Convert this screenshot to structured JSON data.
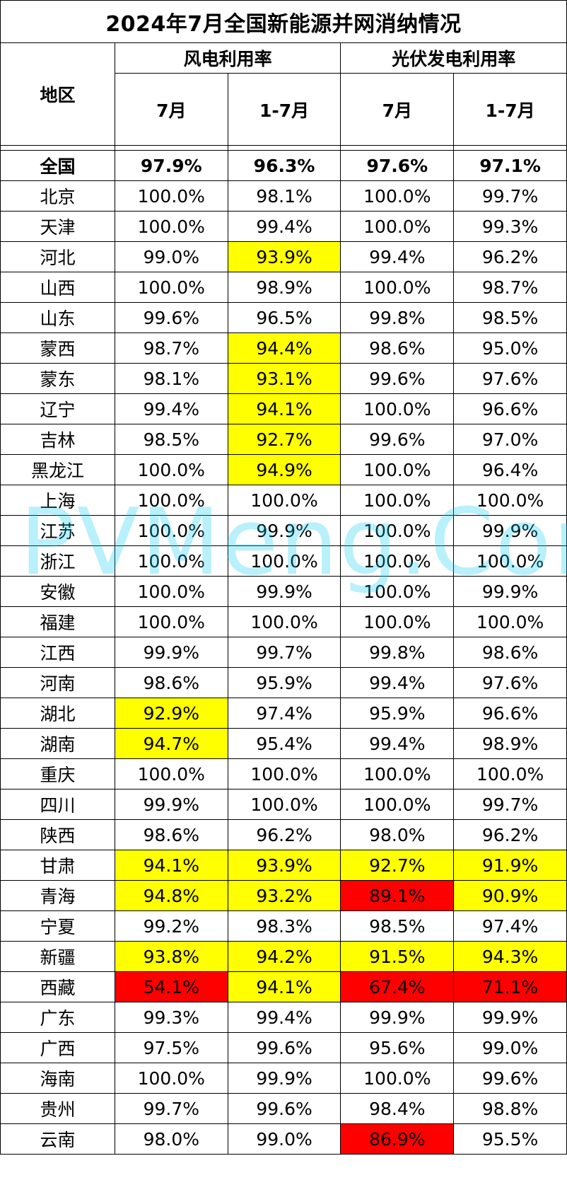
{
  "title": "2024年7月全国新能源并网消纳情况",
  "headers": {
    "region": "地区",
    "wind": "风电利用率",
    "solar": "光伏发电利用率",
    "month": "7月",
    "ytd": "1-7月"
  },
  "highlight_colors": {
    "yellow": "#ffff00",
    "red": "#ff0000"
  },
  "watermark": "PVMeng.Com",
  "rows": [
    {
      "region": "全国",
      "wind_m": "97.9%",
      "wind_y": "96.3%",
      "solar_m": "97.6%",
      "solar_y": "97.1%",
      "hl": [
        "",
        "",
        "",
        ""
      ]
    },
    {
      "region": "北京",
      "wind_m": "100.0%",
      "wind_y": "98.1%",
      "solar_m": "100.0%",
      "solar_y": "99.7%",
      "hl": [
        "",
        "",
        "",
        ""
      ]
    },
    {
      "region": "天津",
      "wind_m": "100.0%",
      "wind_y": "99.4%",
      "solar_m": "100.0%",
      "solar_y": "99.3%",
      "hl": [
        "",
        "",
        "",
        ""
      ]
    },
    {
      "region": "河北",
      "wind_m": "99.0%",
      "wind_y": "93.9%",
      "solar_m": "99.4%",
      "solar_y": "96.2%",
      "hl": [
        "",
        "yellow",
        "",
        ""
      ]
    },
    {
      "region": "山西",
      "wind_m": "100.0%",
      "wind_y": "98.9%",
      "solar_m": "100.0%",
      "solar_y": "98.7%",
      "hl": [
        "",
        "",
        "",
        ""
      ]
    },
    {
      "region": "山东",
      "wind_m": "99.6%",
      "wind_y": "96.5%",
      "solar_m": "99.8%",
      "solar_y": "98.5%",
      "hl": [
        "",
        "",
        "",
        ""
      ]
    },
    {
      "region": "蒙西",
      "wind_m": "98.7%",
      "wind_y": "94.4%",
      "solar_m": "98.6%",
      "solar_y": "95.0%",
      "hl": [
        "",
        "yellow",
        "",
        ""
      ]
    },
    {
      "region": "蒙东",
      "wind_m": "98.1%",
      "wind_y": "93.1%",
      "solar_m": "99.6%",
      "solar_y": "97.6%",
      "hl": [
        "",
        "yellow",
        "",
        ""
      ]
    },
    {
      "region": "辽宁",
      "wind_m": "99.4%",
      "wind_y": "94.1%",
      "solar_m": "100.0%",
      "solar_y": "96.6%",
      "hl": [
        "",
        "yellow",
        "",
        ""
      ]
    },
    {
      "region": "吉林",
      "wind_m": "98.5%",
      "wind_y": "92.7%",
      "solar_m": "99.6%",
      "solar_y": "97.0%",
      "hl": [
        "",
        "yellow",
        "",
        ""
      ]
    },
    {
      "region": "黑龙江",
      "wind_m": "100.0%",
      "wind_y": "94.9%",
      "solar_m": "100.0%",
      "solar_y": "96.4%",
      "hl": [
        "",
        "yellow",
        "",
        ""
      ]
    },
    {
      "region": "上海",
      "wind_m": "100.0%",
      "wind_y": "100.0%",
      "solar_m": "100.0%",
      "solar_y": "100.0%",
      "hl": [
        "",
        "",
        "",
        ""
      ]
    },
    {
      "region": "江苏",
      "wind_m": "100.0%",
      "wind_y": "99.9%",
      "solar_m": "100.0%",
      "solar_y": "99.9%",
      "hl": [
        "",
        "",
        "",
        ""
      ]
    },
    {
      "region": "浙江",
      "wind_m": "100.0%",
      "wind_y": "100.0%",
      "solar_m": "100.0%",
      "solar_y": "100.0%",
      "hl": [
        "",
        "",
        "",
        ""
      ]
    },
    {
      "region": "安徽",
      "wind_m": "100.0%",
      "wind_y": "99.9%",
      "solar_m": "100.0%",
      "solar_y": "99.9%",
      "hl": [
        "",
        "",
        "",
        ""
      ]
    },
    {
      "region": "福建",
      "wind_m": "100.0%",
      "wind_y": "100.0%",
      "solar_m": "100.0%",
      "solar_y": "100.0%",
      "hl": [
        "",
        "",
        "",
        ""
      ]
    },
    {
      "region": "江西",
      "wind_m": "99.9%",
      "wind_y": "99.7%",
      "solar_m": "99.8%",
      "solar_y": "98.6%",
      "hl": [
        "",
        "",
        "",
        ""
      ]
    },
    {
      "region": "河南",
      "wind_m": "98.6%",
      "wind_y": "95.9%",
      "solar_m": "99.4%",
      "solar_y": "97.6%",
      "hl": [
        "",
        "",
        "",
        ""
      ]
    },
    {
      "region": "湖北",
      "wind_m": "92.9%",
      "wind_y": "97.4%",
      "solar_m": "95.9%",
      "solar_y": "96.6%",
      "hl": [
        "yellow",
        "",
        "",
        ""
      ]
    },
    {
      "region": "湖南",
      "wind_m": "94.7%",
      "wind_y": "95.4%",
      "solar_m": "99.4%",
      "solar_y": "98.9%",
      "hl": [
        "yellow",
        "",
        "",
        ""
      ]
    },
    {
      "region": "重庆",
      "wind_m": "100.0%",
      "wind_y": "100.0%",
      "solar_m": "100.0%",
      "solar_y": "100.0%",
      "hl": [
        "",
        "",
        "",
        ""
      ]
    },
    {
      "region": "四川",
      "wind_m": "99.9%",
      "wind_y": "100.0%",
      "solar_m": "100.0%",
      "solar_y": "99.7%",
      "hl": [
        "",
        "",
        "",
        ""
      ]
    },
    {
      "region": "陕西",
      "wind_m": "98.6%",
      "wind_y": "96.2%",
      "solar_m": "98.0%",
      "solar_y": "96.2%",
      "hl": [
        "",
        "",
        "",
        ""
      ]
    },
    {
      "region": "甘肃",
      "wind_m": "94.1%",
      "wind_y": "93.9%",
      "solar_m": "92.7%",
      "solar_y": "91.9%",
      "hl": [
        "yellow",
        "yellow",
        "yellow",
        "yellow"
      ]
    },
    {
      "region": "青海",
      "wind_m": "94.8%",
      "wind_y": "93.2%",
      "solar_m": "89.1%",
      "solar_y": "90.9%",
      "hl": [
        "yellow",
        "yellow",
        "red",
        "yellow"
      ]
    },
    {
      "region": "宁夏",
      "wind_m": "99.2%",
      "wind_y": "98.3%",
      "solar_m": "98.5%",
      "solar_y": "97.4%",
      "hl": [
        "",
        "",
        "",
        ""
      ]
    },
    {
      "region": "新疆",
      "wind_m": "93.8%",
      "wind_y": "94.2%",
      "solar_m": "91.5%",
      "solar_y": "94.3%",
      "hl": [
        "yellow",
        "yellow",
        "yellow",
        "yellow"
      ]
    },
    {
      "region": "西藏",
      "wind_m": "54.1%",
      "wind_y": "94.1%",
      "solar_m": "67.4%",
      "solar_y": "71.1%",
      "hl": [
        "red",
        "yellow",
        "red",
        "red"
      ]
    },
    {
      "region": "广东",
      "wind_m": "99.3%",
      "wind_y": "99.4%",
      "solar_m": "99.9%",
      "solar_y": "99.9%",
      "hl": [
        "",
        "",
        "",
        ""
      ]
    },
    {
      "region": "广西",
      "wind_m": "97.5%",
      "wind_y": "99.6%",
      "solar_m": "95.6%",
      "solar_y": "99.0%",
      "hl": [
        "",
        "",
        "",
        ""
      ]
    },
    {
      "region": "海南",
      "wind_m": "100.0%",
      "wind_y": "99.9%",
      "solar_m": "100.0%",
      "solar_y": "99.6%",
      "hl": [
        "",
        "",
        "",
        ""
      ]
    },
    {
      "region": "贵州",
      "wind_m": "99.7%",
      "wind_y": "99.6%",
      "solar_m": "98.4%",
      "solar_y": "98.8%",
      "hl": [
        "",
        "",
        "",
        ""
      ]
    },
    {
      "region": "云南",
      "wind_m": "98.0%",
      "wind_y": "99.0%",
      "solar_m": "86.9%",
      "solar_y": "95.5%",
      "hl": [
        "",
        "",
        "red",
        ""
      ]
    }
  ]
}
